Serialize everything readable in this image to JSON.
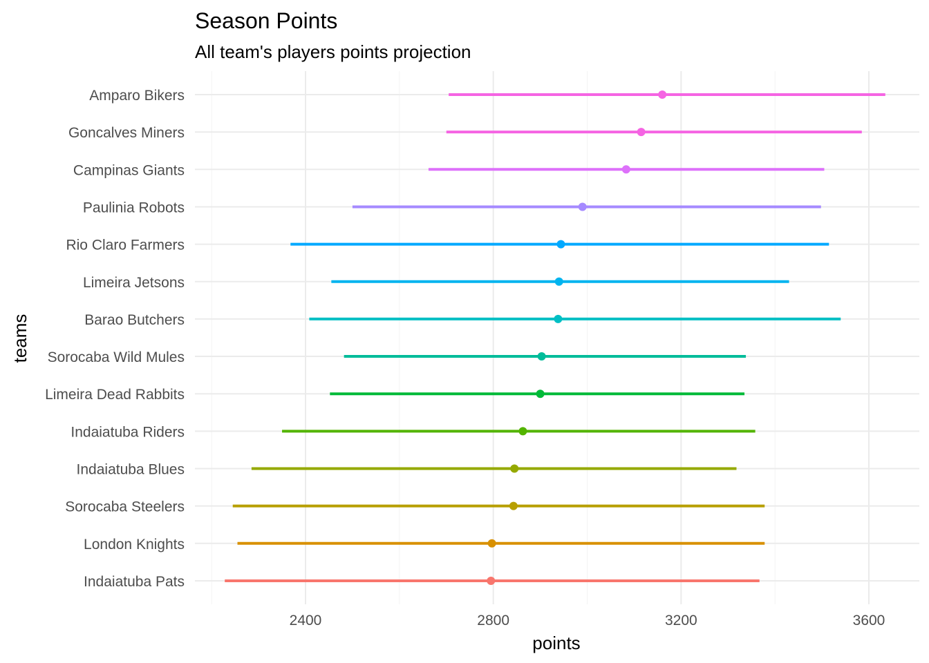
{
  "chart_data": {
    "type": "pointrange",
    "title": "Season Points",
    "subtitle": "All team's players points projection",
    "xlabel": "points",
    "ylabel": "teams",
    "xlim": [
      2150,
      3680
    ],
    "xticks": [
      2400,
      2800,
      3200,
      3600
    ],
    "xtick_labels": [
      "2400",
      "2800",
      "3200",
      "3600"
    ],
    "grid": true,
    "legend": "none",
    "teams": [
      {
        "name": "Amparo Bikers",
        "min": 2705,
        "point": 3160,
        "max": 3635,
        "color": "#F564E3"
      },
      {
        "name": "Goncalves Miners",
        "min": 2700,
        "point": 3115,
        "max": 3585,
        "color": "#F564E3"
      },
      {
        "name": "Campinas Giants",
        "min": 2662,
        "point": 3083,
        "max": 3505,
        "color": "#DD71FA"
      },
      {
        "name": "Paulinia Robots",
        "min": 2500,
        "point": 2990,
        "max": 3498,
        "color": "#A58AFF"
      },
      {
        "name": "Rio Claro Farmers",
        "min": 2368,
        "point": 2944,
        "max": 3515,
        "color": "#00A9FF"
      },
      {
        "name": "Limeira Jetsons",
        "min": 2455,
        "point": 2940,
        "max": 3430,
        "color": "#00B4EF"
      },
      {
        "name": "Barao Butchers",
        "min": 2408,
        "point": 2938,
        "max": 3540,
        "color": "#00BFC4"
      },
      {
        "name": "Sorocaba Wild Mules",
        "min": 2482,
        "point": 2903,
        "max": 3338,
        "color": "#00BC9A"
      },
      {
        "name": "Limeira Dead Rabbits",
        "min": 2452,
        "point": 2900,
        "max": 3335,
        "color": "#00BA38"
      },
      {
        "name": "Indaiatuba Riders",
        "min": 2350,
        "point": 2863,
        "max": 3358,
        "color": "#53B400"
      },
      {
        "name": "Indaiatuba Blues",
        "min": 2285,
        "point": 2845,
        "max": 3318,
        "color": "#95A900"
      },
      {
        "name": "Sorocaba Steelers",
        "min": 2245,
        "point": 2843,
        "max": 3378,
        "color": "#B79F00"
      },
      {
        "name": "London Knights",
        "min": 2255,
        "point": 2797,
        "max": 3378,
        "color": "#D89000"
      },
      {
        "name": "Indaiatuba Pats",
        "min": 2228,
        "point": 2795,
        "max": 3367,
        "color": "#F8766D"
      }
    ]
  }
}
